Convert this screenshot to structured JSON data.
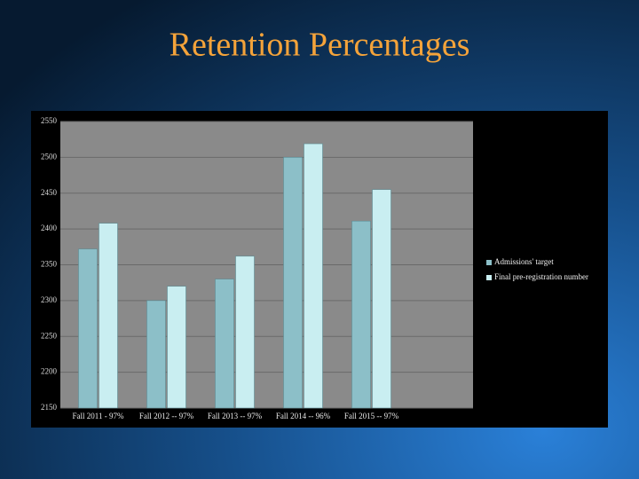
{
  "chart_data": {
    "type": "bar",
    "title": "Retention Percentages",
    "categories": [
      "Fall 2011 - 97%",
      "Fall 2012 -- 97%",
      "Fall 2013 -- 97%",
      "Fall 2014 -- 96%",
      "Fall 2015 -- 97%"
    ],
    "series": [
      {
        "name": "Admissions' target",
        "color": "#8cbfc8",
        "values": [
          2372,
          2300,
          2330,
          2500,
          2411
        ]
      },
      {
        "name": "Final pre-registration number",
        "color": "#c9eef1",
        "values": [
          2408,
          2320,
          2362,
          2519,
          2455
        ]
      }
    ],
    "ylim": [
      2150,
      2550
    ],
    "yticks": [
      2150,
      2200,
      2250,
      2300,
      2350,
      2400,
      2450,
      2500,
      2550
    ],
    "grid": true,
    "legend": "right"
  }
}
